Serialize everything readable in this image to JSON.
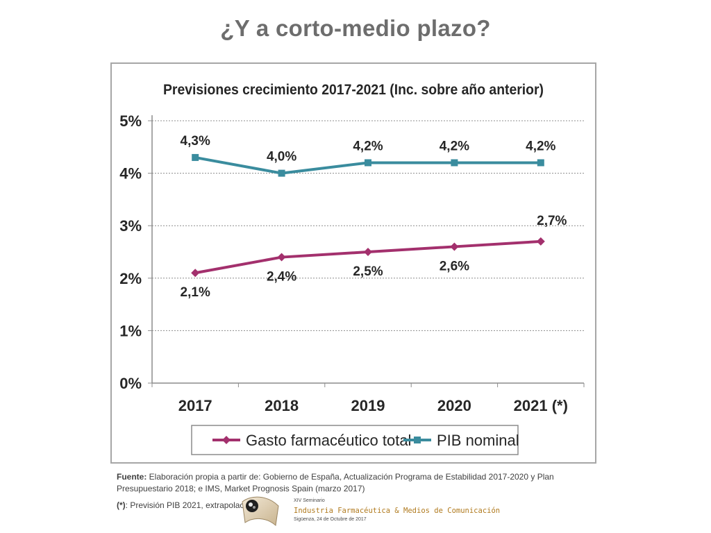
{
  "slide": {
    "title": "¿Y a corto-medio plazo?"
  },
  "chart_data": {
    "type": "line",
    "title": "Previsiones crecimiento 2017-2021 (Inc. sobre año anterior)",
    "categories": [
      "2017",
      "2018",
      "2019",
      "2020",
      "2021 (*)"
    ],
    "ylim": [
      0,
      5
    ],
    "yticks": [
      "0%",
      "1%",
      "2%",
      "3%",
      "4%",
      "5%"
    ],
    "grid": true,
    "legend_position": "bottom",
    "series": [
      {
        "name": "Gasto farmacéutico total",
        "values": [
          2.1,
          2.4,
          2.5,
          2.6,
          2.7
        ],
        "labels": [
          "2,1%",
          "2,4%",
          "2,5%",
          "2,6%",
          "2,7%"
        ],
        "color": "#a3306d",
        "marker": "diamond"
      },
      {
        "name": "PIB nominal",
        "values": [
          4.3,
          4.0,
          4.2,
          4.2,
          4.2
        ],
        "labels": [
          "4,3%",
          "4,0%",
          "4,2%",
          "4,2%",
          "4,2%"
        ],
        "color": "#3a8c9e",
        "marker": "square"
      }
    ]
  },
  "source": {
    "label": "Fuente:",
    "text": " Elaboración propia a partir de: Gobierno de España, Actualización Programa de Estabilidad 2017-2020 y Plan Presupuestario 2018; e IMS, Market Prognosis Spain (marzo 2017)"
  },
  "footnote": {
    "label": "(*)",
    "text": ": Previsión PIB 2021, extrapolación"
  },
  "logo": {
    "line1": "XIV Seminario",
    "line2": "Industria Farmacéutica & Medios de Comunicación",
    "line3": "Sigüenza, 24 de Octubre de 2017"
  }
}
